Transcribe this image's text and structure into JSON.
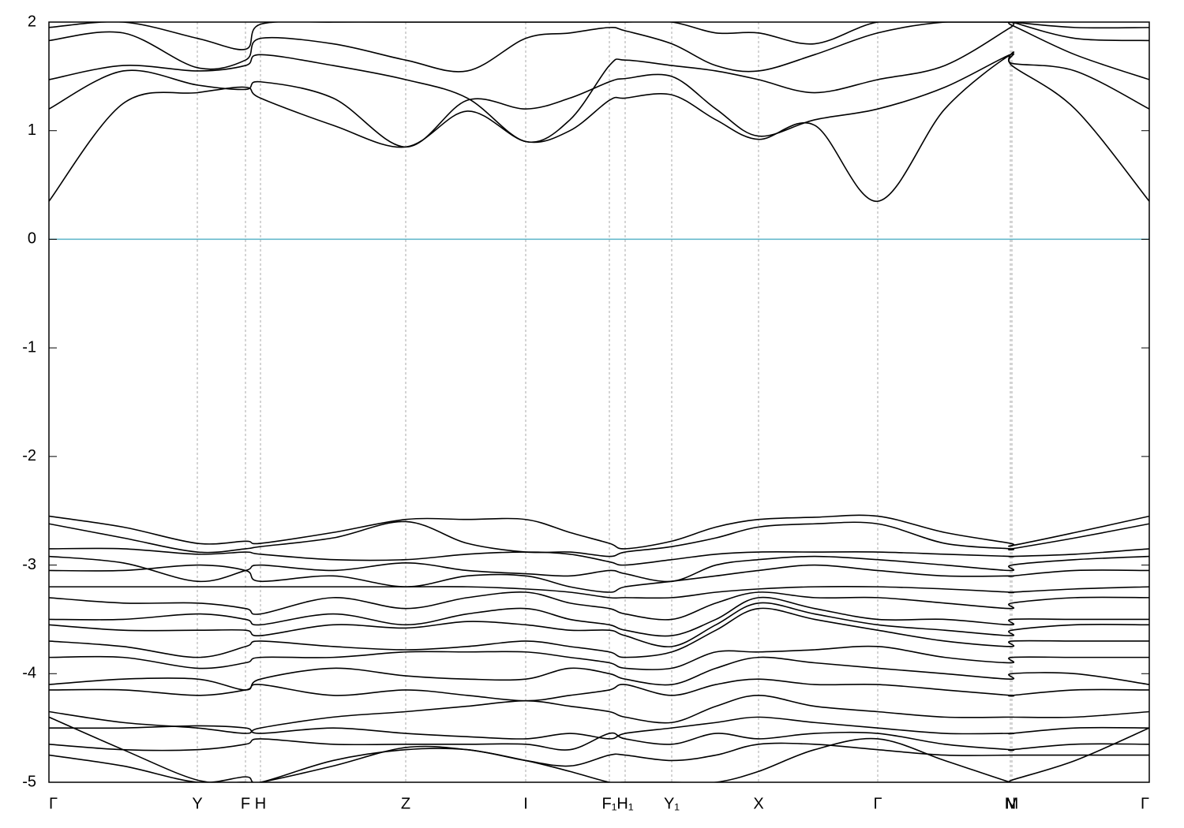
{
  "chart_data": {
    "type": "line",
    "x": [
      0,
      0.094,
      0.188,
      0.249,
      0.268,
      0.36,
      0.452,
      0.53,
      0.604,
      0.66,
      0.71,
      0.73,
      0.789,
      0.845,
      0.899,
      0.97,
      1.05,
      1.135,
      1.218,
      1.22,
      1.3,
      1.394
    ],
    "xlim": [
      0,
      1.394
    ],
    "xticks": [
      {
        "value": 0,
        "label": "Γ"
      },
      {
        "value": 0.188,
        "label": "Y"
      },
      {
        "value": 0.249,
        "label": "F"
      },
      {
        "value": 0.268,
        "label": "H"
      },
      {
        "value": 0.452,
        "label": "Z"
      },
      {
        "value": 0.604,
        "label": "I"
      },
      {
        "value": 0.71,
        "label": "F₁"
      },
      {
        "value": 0.73,
        "label": "H₁"
      },
      {
        "value": 0.789,
        "label": "Y₁"
      },
      {
        "value": 0.899,
        "label": "X"
      },
      {
        "value": 1.05,
        "label": "Γ"
      },
      {
        "value": 1.218,
        "label": "N"
      },
      {
        "value": 1.22,
        "label": "M"
      },
      {
        "value": 1.394,
        "label": "Γ"
      }
    ],
    "ylim": [
      -5,
      2
    ],
    "yticks": [
      -5,
      -4,
      -3,
      -2,
      -1,
      0,
      1,
      2
    ],
    "grid": true,
    "color": "#000000",
    "hlines": [
      {
        "value": 0,
        "color": "#5ab4c8"
      }
    ],
    "series": [
      {
        "values": [
          0.35,
          1.25,
          1.35,
          1.4,
          1.3,
          1.05,
          0.85,
          1.18,
          0.9,
          1.0,
          1.28,
          1.3,
          1.33,
          1.1,
          0.92,
          1.05,
          0.35,
          1.2,
          1.7,
          1.6,
          1.2,
          0.35
        ]
      },
      {
        "values": [
          1.2,
          1.55,
          1.42,
          1.38,
          1.45,
          1.3,
          0.85,
          1.28,
          1.2,
          1.3,
          1.45,
          1.48,
          1.5,
          1.2,
          0.95,
          1.1,
          1.2,
          1.4,
          1.7,
          1.62,
          1.55,
          1.2
        ]
      },
      {
        "values": [
          1.47,
          1.6,
          1.55,
          1.6,
          1.7,
          1.6,
          1.47,
          1.3,
          0.9,
          1.1,
          1.6,
          1.65,
          1.6,
          1.55,
          1.47,
          1.35,
          1.47,
          1.6,
          1.95,
          1.97,
          1.7,
          1.47
        ]
      },
      {
        "values": [
          1.83,
          1.9,
          1.58,
          1.65,
          1.85,
          1.8,
          1.65,
          1.55,
          1.85,
          1.9,
          1.95,
          1.92,
          1.8,
          1.6,
          1.55,
          1.7,
          1.9,
          2.0,
          2.0,
          2.0,
          1.85,
          1.83
        ]
      },
      {
        "values": [
          1.95,
          2.0,
          1.85,
          1.75,
          1.98,
          2.0,
          2.0,
          2.0,
          2.0,
          2.0,
          2.0,
          2.0,
          2.0,
          1.9,
          1.9,
          1.8,
          2.0,
          2.0,
          2.0,
          2.0,
          1.95,
          1.95
        ]
      },
      {
        "values": [
          -2.55,
          -2.65,
          -2.8,
          -2.78,
          -2.8,
          -2.7,
          -2.58,
          -2.58,
          -2.58,
          -2.7,
          -2.8,
          -2.85,
          -2.78,
          -2.65,
          -2.58,
          -2.56,
          -2.55,
          -2.7,
          -2.8,
          -2.82,
          -2.7,
          -2.55
        ]
      },
      {
        "values": [
          -2.62,
          -2.75,
          -2.88,
          -2.85,
          -2.83,
          -2.75,
          -2.6,
          -2.8,
          -2.88,
          -2.88,
          -2.92,
          -2.88,
          -2.83,
          -2.75,
          -2.65,
          -2.62,
          -2.62,
          -2.8,
          -2.85,
          -2.85,
          -2.75,
          -2.62
        ]
      },
      {
        "values": [
          -2.85,
          -2.85,
          -2.9,
          -2.88,
          -2.9,
          -2.95,
          -2.95,
          -2.9,
          -2.88,
          -2.9,
          -2.97,
          -3.0,
          -2.95,
          -2.9,
          -2.88,
          -2.88,
          -2.88,
          -2.9,
          -2.92,
          -2.92,
          -2.9,
          -2.85
        ]
      },
      {
        "values": [
          -2.92,
          -2.98,
          -3.15,
          -3.05,
          -3.0,
          -3.05,
          -2.98,
          -3.05,
          -3.08,
          -3.1,
          -3.05,
          -3.08,
          -3.15,
          -3.0,
          -2.95,
          -2.92,
          -2.95,
          -3.0,
          -3.05,
          -3.0,
          -2.95,
          -2.92
        ]
      },
      {
        "values": [
          -3.05,
          -3.05,
          -3.0,
          -3.05,
          -3.15,
          -3.1,
          -3.2,
          -3.1,
          -3.1,
          -3.2,
          -3.25,
          -3.2,
          -3.15,
          -3.1,
          -3.05,
          -3.0,
          -3.05,
          -3.1,
          -3.1,
          -3.1,
          -3.05,
          -3.05
        ]
      },
      {
        "values": [
          -3.2,
          -3.2,
          -3.2,
          -3.2,
          -3.2,
          -3.2,
          -3.2,
          -3.2,
          -3.22,
          -3.25,
          -3.3,
          -3.3,
          -3.3,
          -3.25,
          -3.22,
          -3.2,
          -3.2,
          -3.22,
          -3.25,
          -3.25,
          -3.22,
          -3.2
        ]
      },
      {
        "values": [
          -3.3,
          -3.35,
          -3.35,
          -3.4,
          -3.45,
          -3.3,
          -3.4,
          -3.3,
          -3.25,
          -3.35,
          -3.4,
          -3.45,
          -3.5,
          -3.35,
          -3.25,
          -3.3,
          -3.3,
          -3.35,
          -3.4,
          -3.35,
          -3.3,
          -3.3
        ]
      },
      {
        "values": [
          -3.5,
          -3.5,
          -3.45,
          -3.5,
          -3.55,
          -3.45,
          -3.55,
          -3.45,
          -3.4,
          -3.5,
          -3.55,
          -3.6,
          -3.65,
          -3.5,
          -3.3,
          -3.4,
          -3.5,
          -3.5,
          -3.55,
          -3.5,
          -3.5,
          -3.5
        ]
      },
      {
        "values": [
          -3.55,
          -3.6,
          -3.6,
          -3.6,
          -3.65,
          -3.55,
          -3.58,
          -3.52,
          -3.55,
          -3.6,
          -3.6,
          -3.65,
          -3.75,
          -3.55,
          -3.35,
          -3.45,
          -3.55,
          -3.6,
          -3.65,
          -3.6,
          -3.55,
          -3.55
        ]
      },
      {
        "values": [
          -3.7,
          -3.75,
          -3.85,
          -3.75,
          -3.7,
          -3.75,
          -3.78,
          -3.75,
          -3.7,
          -3.75,
          -3.8,
          -3.85,
          -3.8,
          -3.6,
          -3.4,
          -3.5,
          -3.6,
          -3.7,
          -3.75,
          -3.7,
          -3.7,
          -3.7
        ]
      },
      {
        "values": [
          -3.85,
          -3.85,
          -3.95,
          -3.9,
          -3.85,
          -3.85,
          -3.8,
          -3.8,
          -3.8,
          -3.85,
          -3.9,
          -3.95,
          -3.95,
          -3.8,
          -3.8,
          -3.78,
          -3.75,
          -3.85,
          -3.9,
          -3.85,
          -3.85,
          -3.85
        ]
      },
      {
        "values": [
          -4.1,
          -4.05,
          -4.05,
          -4.15,
          -4.05,
          -3.95,
          -4.02,
          -4.05,
          -4.05,
          -3.95,
          -4.0,
          -4.05,
          -4.1,
          -3.95,
          -3.85,
          -3.9,
          -3.95,
          -4.0,
          -4.05,
          -4.0,
          -4.0,
          -4.1
        ]
      },
      {
        "values": [
          -4.15,
          -4.15,
          -4.2,
          -4.15,
          -4.1,
          -4.2,
          -4.15,
          -4.2,
          -4.25,
          -4.2,
          -4.15,
          -4.1,
          -4.2,
          -4.1,
          -4.05,
          -4.1,
          -4.1,
          -4.15,
          -4.2,
          -4.2,
          -4.15,
          -4.15
        ]
      },
      {
        "values": [
          -4.35,
          -4.45,
          -4.5,
          -4.55,
          -4.5,
          -4.4,
          -4.35,
          -4.3,
          -4.25,
          -4.3,
          -4.35,
          -4.4,
          -4.45,
          -4.3,
          -4.2,
          -4.3,
          -4.35,
          -4.4,
          -4.4,
          -4.4,
          -4.4,
          -4.35
        ]
      },
      {
        "values": [
          -4.5,
          -4.5,
          -4.48,
          -4.5,
          -4.55,
          -4.5,
          -4.55,
          -4.58,
          -4.6,
          -4.55,
          -4.6,
          -4.55,
          -4.5,
          -4.45,
          -4.4,
          -4.45,
          -4.5,
          -4.55,
          -4.55,
          -4.55,
          -4.5,
          -4.5
        ]
      },
      {
        "values": [
          -4.65,
          -4.7,
          -4.7,
          -4.65,
          -4.6,
          -4.65,
          -4.65,
          -4.65,
          -4.65,
          -4.7,
          -4.55,
          -4.6,
          -4.65,
          -4.55,
          -4.6,
          -4.55,
          -4.55,
          -4.65,
          -4.7,
          -4.7,
          -4.65,
          -4.65
        ]
      },
      {
        "values": [
          -4.75,
          -4.85,
          -5.0,
          -4.95,
          -5.0,
          -4.8,
          -4.7,
          -4.7,
          -4.8,
          -4.85,
          -4.75,
          -4.75,
          -4.8,
          -4.75,
          -4.65,
          -4.65,
          -4.7,
          -4.75,
          -4.75,
          -4.75,
          -4.75,
          -4.75
        ]
      },
      {
        "values": [
          -4.4,
          -4.7,
          -4.98,
          -5.0,
          -5.0,
          -4.85,
          -4.68,
          -4.7,
          -4.8,
          -4.9,
          -5.0,
          -5.0,
          -5.0,
          -5.0,
          -4.9,
          -4.7,
          -4.6,
          -4.8,
          -5.0,
          -4.98,
          -4.8,
          -4.5
        ]
      }
    ]
  }
}
